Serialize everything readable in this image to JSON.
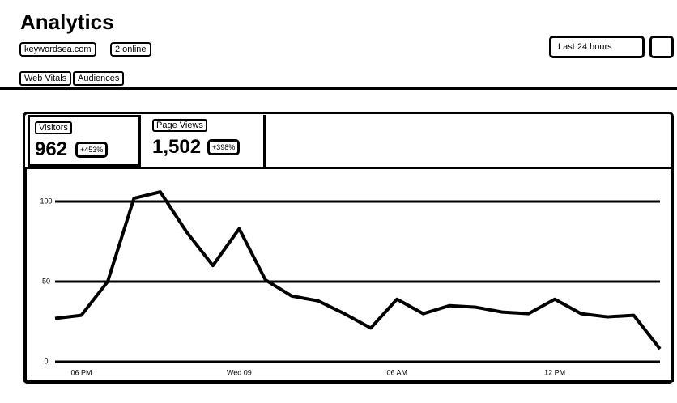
{
  "header": {
    "title": "Analytics",
    "site": "keywordsea.com",
    "online": "2 online",
    "range": "Last 24 hours"
  },
  "tabs": [
    "Web Vitals",
    "Audiences"
  ],
  "stats": [
    {
      "label": "Visitors",
      "value": "962",
      "change": "+453%"
    },
    {
      "label": "Page Views",
      "value": "1,502",
      "change": "+398%"
    }
  ],
  "chart_data": {
    "type": "line",
    "categories": [
      null,
      "06 PM",
      null,
      null,
      null,
      null,
      null,
      "Wed 09",
      null,
      null,
      null,
      null,
      null,
      "06 AM",
      null,
      null,
      null,
      null,
      null,
      "12 PM",
      null,
      null,
      null,
      null
    ],
    "values": [
      27,
      29,
      50,
      102,
      106,
      81,
      60,
      83,
      51,
      41,
      38,
      30,
      21,
      39,
      30,
      35,
      34,
      31,
      30,
      39,
      30,
      28,
      29,
      8
    ],
    "color": "#000000",
    "ylim": [
      0,
      100
    ],
    "yticks": [
      0,
      50,
      100
    ],
    "grid": true
  }
}
